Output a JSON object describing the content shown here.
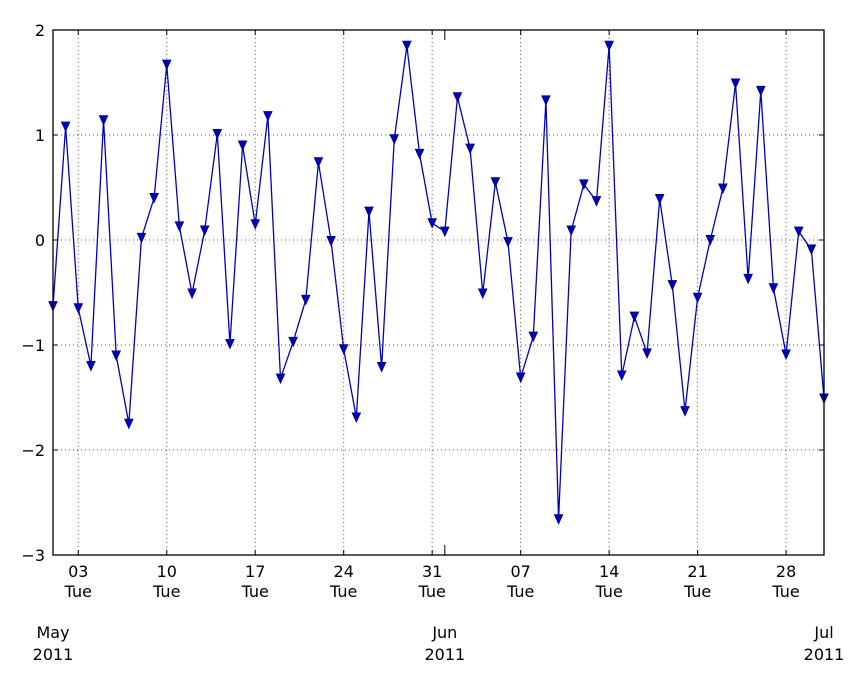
{
  "chart_data": {
    "type": "line",
    "title": "",
    "xlabel": "",
    "ylabel": "",
    "x_start": "2011-05-01",
    "x_end": "2011-07-01",
    "ylim": [
      -3,
      2
    ],
    "grid": true,
    "marker": "triangle-down",
    "colors": {
      "line": "#0000bf",
      "marker_edge": "#00007f"
    },
    "yticks": [
      {
        "value": 2,
        "label": "2"
      },
      {
        "value": 1,
        "label": "1"
      },
      {
        "value": 0,
        "label": "0"
      },
      {
        "value": -1,
        "label": "−1"
      },
      {
        "value": -2,
        "label": "−2"
      },
      {
        "value": -3,
        "label": "−3"
      }
    ],
    "xticks_minor": [
      {
        "date": "2011-05-03",
        "label": "03"
      },
      {
        "date": "2011-05-10",
        "label": "10"
      },
      {
        "date": "2011-05-17",
        "label": "17"
      },
      {
        "date": "2011-05-24",
        "label": "24"
      },
      {
        "date": "2011-05-31",
        "label": "31"
      },
      {
        "date": "2011-06-07",
        "label": "07"
      },
      {
        "date": "2011-06-14",
        "label": "14"
      },
      {
        "date": "2011-06-21",
        "label": "21"
      },
      {
        "date": "2011-06-28",
        "label": "28"
      }
    ],
    "weekday_label": "Tue",
    "xticks_major": [
      {
        "date": "2011-05-01",
        "month": "May",
        "year": "2011"
      },
      {
        "date": "2011-06-01",
        "month": "Jun",
        "year": "2011"
      },
      {
        "date": "2011-07-01",
        "month": "Jul",
        "year": "2011"
      }
    ],
    "series": [
      {
        "dates": [
          "2011-05-01",
          "2011-05-02",
          "2011-05-03",
          "2011-05-04",
          "2011-05-05",
          "2011-05-06",
          "2011-05-07",
          "2011-05-08",
          "2011-05-09",
          "2011-05-10",
          "2011-05-11",
          "2011-05-12",
          "2011-05-13",
          "2011-05-14",
          "2011-05-15",
          "2011-05-16",
          "2011-05-17",
          "2011-05-18",
          "2011-05-19",
          "2011-05-20",
          "2011-05-21",
          "2011-05-22",
          "2011-05-23",
          "2011-05-24",
          "2011-05-25",
          "2011-05-26",
          "2011-05-27",
          "2011-05-28",
          "2011-05-29",
          "2011-05-30",
          "2011-05-31",
          "2011-06-01",
          "2011-06-02",
          "2011-06-03",
          "2011-06-04",
          "2011-06-05",
          "2011-06-06",
          "2011-06-07",
          "2011-06-08",
          "2011-06-09",
          "2011-06-10",
          "2011-06-11",
          "2011-06-12",
          "2011-06-13",
          "2011-06-14",
          "2011-06-15",
          "2011-06-16",
          "2011-06-17",
          "2011-06-18",
          "2011-06-19",
          "2011-06-20",
          "2011-06-21",
          "2011-06-22",
          "2011-06-23",
          "2011-06-24",
          "2011-06-25",
          "2011-06-26",
          "2011-06-27",
          "2011-06-28",
          "2011-06-29",
          "2011-06-30",
          "2011-07-01"
        ],
        "values": [
          -0.63,
          1.08,
          -0.65,
          -1.2,
          1.14,
          -1.1,
          -1.75,
          0.02,
          0.4,
          1.67,
          0.13,
          -0.51,
          0.09,
          1.01,
          -0.99,
          0.9,
          0.15,
          1.18,
          -1.32,
          -0.97,
          -0.57,
          0.74,
          -0.01,
          -1.04,
          -1.69,
          0.27,
          -1.21,
          0.96,
          1.85,
          0.82,
          0.16,
          0.08,
          1.36,
          0.87,
          -0.51,
          0.55,
          -0.02,
          -1.31,
          -0.92,
          1.33,
          -2.66,
          0.09,
          0.53,
          0.37,
          1.85,
          -1.29,
          -0.73,
          -1.08,
          0.39,
          -0.43,
          -1.63,
          -0.55,
          0.0,
          0.49,
          1.49,
          -0.37,
          1.42,
          -0.46,
          -1.09,
          0.08,
          -0.09,
          -1.51
        ]
      }
    ]
  }
}
